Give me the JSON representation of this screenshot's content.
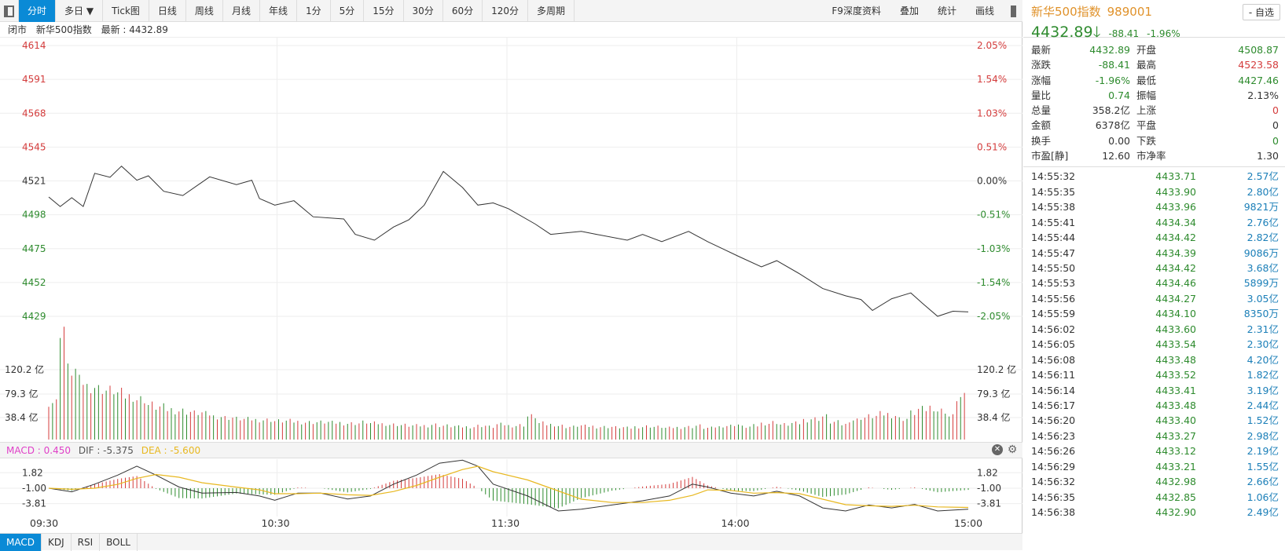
{
  "toolbar": {
    "tabs": [
      "分时",
      "多日 ▼",
      "Tick图",
      "日线",
      "周线",
      "月线",
      "年线",
      "1分",
      "5分",
      "15分",
      "30分",
      "60分",
      "120分",
      "多周期"
    ],
    "right": [
      "F9深度资料",
      "叠加",
      "统计",
      "画线"
    ]
  },
  "info": {
    "status": "闭市",
    "name": "新华500指数",
    "latest": "最新 : 4432.89"
  },
  "chart_data": {
    "type": "line",
    "title": "新华500指数 分时",
    "preclose": 4521.3,
    "price_axis_left": [
      "4614",
      "4591",
      "4568",
      "4545",
      "4521",
      "4498",
      "4475",
      "4452",
      "4429"
    ],
    "price_axis_right": [
      "2.05%",
      "1.54%",
      "1.03%",
      "0.51%",
      "0.00%",
      "-0.51%",
      "-1.03%",
      "-1.54%",
      "-2.05%"
    ],
    "price_ylim": [
      4429,
      4614
    ],
    "time_labels": [
      "09:30",
      "10:30",
      "11:30",
      "14:00",
      "15:00"
    ],
    "price_minutes": [
      0,
      3,
      6,
      9,
      12,
      16,
      19,
      23,
      26,
      30,
      35,
      42,
      49,
      53,
      55,
      59,
      64,
      69,
      77,
      80,
      85,
      90,
      94,
      98,
      103,
      108,
      112,
      116,
      120,
      127,
      131,
      139,
      143,
      151,
      155,
      160,
      167,
      172,
      176,
      180,
      186,
      190,
      196,
      202,
      208,
      212,
      215,
      220,
      225,
      228,
      232,
      236,
      240
    ],
    "price_values": [
      4510.5,
      4504,
      4510,
      4504,
      4526.7,
      4524,
      4531.6,
      4522,
      4525,
      4514.4,
      4511.5,
      4524.3,
      4519,
      4522,
      4509.5,
      4505,
      4508,
      4497,
      4495.5,
      4485,
      4481,
      4490,
      4495,
      4505,
      4528,
      4517,
      4505,
      4506.5,
      4502.5,
      4492,
      4485,
      4487,
      4485,
      4481,
      4485,
      4480,
      4487,
      4480,
      4475,
      4470,
      4462.8,
      4467,
      4458,
      4448,
      4443,
      4440.5,
      4433,
      4441,
      4445,
      4438,
      4429,
      4432.5,
      4432
    ],
    "volume_axis": [
      "120.2 亿",
      "79.3 亿",
      "38.4 亿"
    ],
    "volume_values": [
      65,
      196,
      120,
      100,
      92,
      88,
      85,
      80,
      75,
      70,
      60,
      56,
      52,
      50,
      48,
      46,
      44,
      40,
      38,
      36,
      35,
      34,
      34,
      32,
      32,
      31,
      30,
      30,
      30,
      29,
      28,
      28,
      30,
      28,
      27,
      26,
      25,
      24,
      24,
      26,
      24,
      23,
      22,
      22,
      24,
      22,
      26,
      24,
      25,
      40,
      28,
      26,
      24,
      22,
      24,
      23,
      22,
      22,
      21,
      20,
      22,
      23,
      22,
      20,
      21,
      22,
      24,
      20,
      22,
      24,
      26,
      22,
      24,
      28,
      30,
      26,
      28,
      34,
      36,
      40,
      30,
      26,
      34,
      38,
      40,
      44,
      42,
      36,
      46,
      52,
      56,
      50,
      40,
      72
    ],
    "volume_up": [
      1,
      0,
      0,
      0,
      0,
      0,
      0,
      0,
      0,
      1,
      0,
      0,
      1,
      0,
      0,
      1,
      0,
      0,
      1,
      0,
      1,
      0,
      0,
      1,
      1,
      0,
      0,
      1,
      0,
      0,
      1,
      1,
      0,
      0,
      1,
      0,
      0,
      1,
      0,
      0,
      0,
      1,
      0,
      0,
      1,
      0,
      1,
      0,
      1,
      0,
      0,
      1,
      0,
      0,
      0,
      1,
      0,
      0,
      1,
      0,
      0,
      1,
      0,
      0,
      1,
      0,
      0,
      0,
      1,
      0,
      1,
      0,
      0,
      1,
      1,
      0,
      0,
      1,
      0,
      1,
      0,
      0,
      1,
      0,
      1,
      1,
      0,
      0,
      0,
      1,
      1,
      0,
      0,
      1
    ],
    "macd_axis": [
      "1.82",
      "-1.00",
      "-3.81"
    ],
    "macd_minutes": [
      0,
      6,
      12,
      18,
      23,
      28,
      34,
      40,
      49,
      55,
      59,
      65,
      71,
      78,
      84,
      90,
      96,
      102,
      108,
      112,
      116,
      125,
      133,
      139,
      147,
      155,
      162,
      168,
      172,
      178,
      184,
      190,
      196,
      202,
      208,
      214,
      220,
      226,
      232,
      240
    ],
    "dif": [
      -1.0,
      -1.66,
      -0.25,
      1.39,
      3.02,
      1.39,
      -0.79,
      -1.88,
      -1.77,
      -2.42,
      -3.19,
      -1.88,
      -1.88,
      -2.96,
      -2.42,
      -0.25,
      1.39,
      3.56,
      4.1,
      3.02,
      -0.25,
      -2.42,
      -5.14,
      -4.81,
      -4.05,
      -3.29,
      -2.42,
      -0.25,
      -0.79,
      -1.88,
      -2.42,
      -1.55,
      -2.42,
      -4.59,
      -5.14,
      -4.05,
      -4.59,
      -3.94,
      -5.14,
      -4.81
    ],
    "dea": [
      -1.0,
      -1.2,
      -1.0,
      -0.3,
      0.8,
      1.5,
      1.0,
      0.0,
      -0.8,
      -1.3,
      -2.0,
      -2.0,
      -1.9,
      -2.2,
      -2.3,
      -1.6,
      -0.5,
      1.0,
      2.4,
      3.0,
      2.0,
      0.5,
      -1.5,
      -3.0,
      -3.6,
      -3.6,
      -3.2,
      -2.3,
      -1.3,
      -1.4,
      -1.9,
      -1.8,
      -2.0,
      -3.0,
      -4.0,
      -4.2,
      -4.3,
      -4.1,
      -4.4,
      -4.5
    ]
  },
  "macd_header": {
    "macd": "MACD : 0.450",
    "dif": "DIF : -5.375",
    "dea": "DEA : -5.600"
  },
  "bottom_tabs": [
    "MACD",
    "KDJ",
    "RSI",
    "BOLL"
  ],
  "quote": {
    "name": "新华500指数",
    "code": "989001",
    "price": "4432.89",
    "change": "-88.41",
    "pct": "-1.96%",
    "watch": "- 自选",
    "stats": [
      {
        "l": "最新",
        "v": "4432.89",
        "vc": "g",
        "l2": "开盘",
        "v2": "4508.87",
        "v2c": "g"
      },
      {
        "l": "涨跌",
        "v": "-88.41",
        "vc": "g",
        "l2": "最高",
        "v2": "4523.58",
        "v2c": "r"
      },
      {
        "l": "涨幅",
        "v": "-1.96%",
        "vc": "g",
        "l2": "最低",
        "v2": "4427.46",
        "v2c": "g"
      },
      {
        "l": "量比",
        "v": "0.74",
        "vc": "g",
        "l2": "振幅",
        "v2": "2.13%",
        "v2c": "k"
      },
      {
        "l": "总量",
        "v": "358.2亿",
        "vc": "k",
        "l2": "上涨",
        "v2": "0",
        "v2c": "r"
      },
      {
        "l": "金额",
        "v": "6378亿",
        "vc": "k",
        "l2": "平盘",
        "v2": "0",
        "v2c": "k"
      },
      {
        "l": "换手",
        "v": "0.00",
        "vc": "k",
        "l2": "下跌",
        "v2": "0",
        "v2c": "g"
      },
      {
        "l": "市盈[静]",
        "v": "12.60",
        "vc": "k",
        "l2": "市净率",
        "v2": "1.30",
        "v2c": "k"
      }
    ]
  },
  "ticks": [
    [
      "14:55:32",
      "4433.71",
      "2.57亿"
    ],
    [
      "14:55:35",
      "4433.90",
      "2.80亿"
    ],
    [
      "14:55:38",
      "4433.96",
      "9821万"
    ],
    [
      "14:55:41",
      "4434.34",
      "2.76亿"
    ],
    [
      "14:55:44",
      "4434.42",
      "2.82亿"
    ],
    [
      "14:55:47",
      "4434.39",
      "9086万"
    ],
    [
      "14:55:50",
      "4434.42",
      "3.68亿"
    ],
    [
      "14:55:53",
      "4434.46",
      "5899万"
    ],
    [
      "14:55:56",
      "4434.27",
      "3.05亿"
    ],
    [
      "14:55:59",
      "4434.10",
      "8350万"
    ],
    [
      "14:56:02",
      "4433.60",
      "2.31亿"
    ],
    [
      "14:56:05",
      "4433.54",
      "2.30亿"
    ],
    [
      "14:56:08",
      "4433.48",
      "4.20亿"
    ],
    [
      "14:56:11",
      "4433.52",
      "1.82亿"
    ],
    [
      "14:56:14",
      "4433.41",
      "3.19亿"
    ],
    [
      "14:56:17",
      "4433.48",
      "2.44亿"
    ],
    [
      "14:56:20",
      "4433.40",
      "1.52亿"
    ],
    [
      "14:56:23",
      "4433.27",
      "2.98亿"
    ],
    [
      "14:56:26",
      "4433.12",
      "2.19亿"
    ],
    [
      "14:56:29",
      "4433.21",
      "1.55亿"
    ],
    [
      "14:56:32",
      "4432.98",
      "2.66亿"
    ],
    [
      "14:56:35",
      "4432.85",
      "1.06亿"
    ],
    [
      "14:56:38",
      "4432.90",
      "2.49亿"
    ]
  ],
  "colors": {
    "up": "#d43c3c",
    "down": "#2e8b2e",
    "accent": "#0a8ad6",
    "dea": "#e8b820",
    "macd": "#e040c8"
  }
}
